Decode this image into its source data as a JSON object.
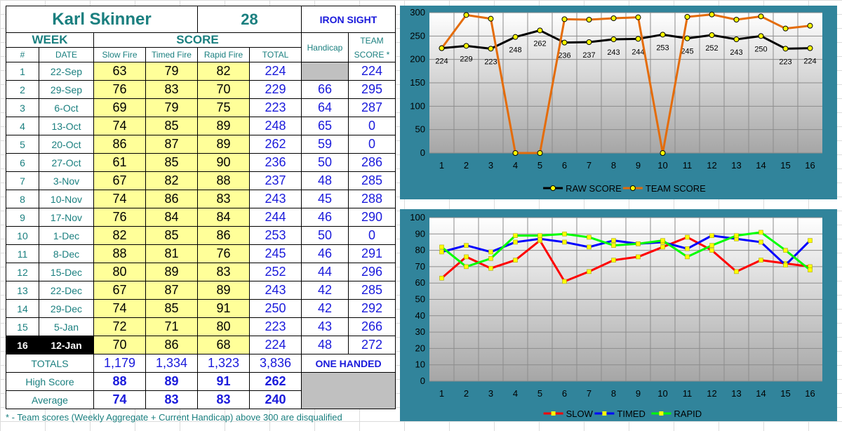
{
  "shooter": {
    "name": "Karl Skinner",
    "number": "28",
    "team": "IRON SIGHT"
  },
  "headers": {
    "week": "WEEK",
    "score": "SCORE",
    "num": "#",
    "date": "DATE",
    "slow": "Slow Fire",
    "timed": "Timed Fire",
    "rapid": "Rapid Fire",
    "total": "TOTAL",
    "handicap": "Handicap",
    "team_score_line1": "TEAM",
    "team_score_line2": "SCORE *"
  },
  "rows": [
    {
      "week": "1",
      "date": "22-Sep",
      "slow": "63",
      "timed": "79",
      "rapid": "82",
      "total": "224",
      "handicap": "",
      "team_score": "224"
    },
    {
      "week": "2",
      "date": "29-Sep",
      "slow": "76",
      "timed": "83",
      "rapid": "70",
      "total": "229",
      "handicap": "66",
      "team_score": "295"
    },
    {
      "week": "3",
      "date": "6-Oct",
      "slow": "69",
      "timed": "79",
      "rapid": "75",
      "total": "223",
      "handicap": "64",
      "team_score": "287"
    },
    {
      "week": "4",
      "date": "13-Oct",
      "slow": "74",
      "timed": "85",
      "rapid": "89",
      "total": "248",
      "handicap": "65",
      "team_score": "0"
    },
    {
      "week": "5",
      "date": "20-Oct",
      "slow": "86",
      "timed": "87",
      "rapid": "89",
      "total": "262",
      "handicap": "59",
      "team_score": "0"
    },
    {
      "week": "6",
      "date": "27-Oct",
      "slow": "61",
      "timed": "85",
      "rapid": "90",
      "total": "236",
      "handicap": "50",
      "team_score": "286"
    },
    {
      "week": "7",
      "date": "3-Nov",
      "slow": "67",
      "timed": "82",
      "rapid": "88",
      "total": "237",
      "handicap": "48",
      "team_score": "285"
    },
    {
      "week": "8",
      "date": "10-Nov",
      "slow": "74",
      "timed": "86",
      "rapid": "83",
      "total": "243",
      "handicap": "45",
      "team_score": "288"
    },
    {
      "week": "9",
      "date": "17-Nov",
      "slow": "76",
      "timed": "84",
      "rapid": "84",
      "total": "244",
      "handicap": "46",
      "team_score": "290"
    },
    {
      "week": "10",
      "date": "1-Dec",
      "slow": "82",
      "timed": "85",
      "rapid": "86",
      "total": "253",
      "handicap": "50",
      "team_score": "0"
    },
    {
      "week": "11",
      "date": "8-Dec",
      "slow": "88",
      "timed": "81",
      "rapid": "76",
      "total": "245",
      "handicap": "46",
      "team_score": "291"
    },
    {
      "week": "12",
      "date": "15-Dec",
      "slow": "80",
      "timed": "89",
      "rapid": "83",
      "total": "252",
      "handicap": "44",
      "team_score": "296"
    },
    {
      "week": "13",
      "date": "22-Dec",
      "slow": "67",
      "timed": "87",
      "rapid": "89",
      "total": "243",
      "handicap": "42",
      "team_score": "285"
    },
    {
      "week": "14",
      "date": "29-Dec",
      "slow": "74",
      "timed": "85",
      "rapid": "91",
      "total": "250",
      "handicap": "42",
      "team_score": "292"
    },
    {
      "week": "15",
      "date": "5-Jan",
      "slow": "72",
      "timed": "71",
      "rapid": "80",
      "total": "223",
      "handicap": "43",
      "team_score": "266"
    },
    {
      "week": "16",
      "date": "12-Jan",
      "slow": "70",
      "timed": "86",
      "rapid": "68",
      "total": "224",
      "handicap": "48",
      "team_score": "272"
    }
  ],
  "summary": {
    "totals": {
      "label": "TOTALS",
      "slow": "1,179",
      "timed": "1,334",
      "rapid": "1,323",
      "total": "3,836"
    },
    "high": {
      "label": "High Score",
      "slow": "88",
      "timed": "89",
      "rapid": "91",
      "total": "262"
    },
    "average": {
      "label": "Average",
      "slow": "74",
      "timed": "83",
      "rapid": "83",
      "total": "240"
    },
    "class_label": "ONE HANDED"
  },
  "footnote": "* - Team scores (Weekly Aggregate + Current Handicap) above 300 are disqualified",
  "colors": {
    "teal": "#1a7f7f",
    "blue": "#1a1adb",
    "yellow_cells": "#ffff99",
    "panel": "#31849b",
    "raw": "#000000",
    "team": "#e46c0a",
    "slow": "#ff0000",
    "timed": "#0000ff",
    "rapid": "#00ff00",
    "marker": "#ffff00"
  },
  "chart_data": [
    {
      "type": "line",
      "x": [
        1,
        2,
        3,
        4,
        5,
        6,
        7,
        8,
        9,
        10,
        11,
        12,
        13,
        14,
        15,
        16
      ],
      "ylim": [
        0,
        300
      ],
      "yticks": [
        0,
        50,
        100,
        150,
        200,
        250,
        300
      ],
      "grid": true,
      "legend_position": "bottom",
      "series": [
        {
          "name": "RAW SCORE",
          "color": "#000000",
          "values": [
            224,
            229,
            223,
            248,
            262,
            236,
            237,
            243,
            244,
            253,
            245,
            252,
            243,
            250,
            223,
            224
          ],
          "labels": [
            "224",
            "229",
            "223",
            "248",
            "262",
            "236",
            "237",
            "243",
            "244",
            "253",
            "245",
            "252",
            "243",
            "250",
            "223",
            "224"
          ]
        },
        {
          "name": "TEAM SCORE",
          "color": "#e46c0a",
          "values": [
            224,
            295,
            287,
            0,
            0,
            286,
            285,
            288,
            290,
            0,
            291,
            296,
            285,
            292,
            266,
            272
          ]
        }
      ]
    },
    {
      "type": "line",
      "x": [
        1,
        2,
        3,
        4,
        5,
        6,
        7,
        8,
        9,
        10,
        11,
        12,
        13,
        14,
        15,
        16
      ],
      "ylim": [
        0,
        100
      ],
      "yticks": [
        0,
        10,
        20,
        30,
        40,
        50,
        60,
        70,
        80,
        90,
        100
      ],
      "grid": true,
      "legend_position": "bottom",
      "series": [
        {
          "name": "SLOW",
          "color": "#ff0000",
          "values": [
            63,
            76,
            69,
            74,
            86,
            61,
            67,
            74,
            76,
            82,
            88,
            80,
            67,
            74,
            72,
            70
          ]
        },
        {
          "name": "TIMED",
          "color": "#0000ff",
          "values": [
            79,
            83,
            79,
            85,
            87,
            85,
            82,
            86,
            84,
            85,
            81,
            89,
            87,
            85,
            71,
            86
          ]
        },
        {
          "name": "RAPID",
          "color": "#00ff00",
          "values": [
            82,
            70,
            75,
            89,
            89,
            90,
            88,
            83,
            84,
            86,
            76,
            83,
            89,
            91,
            80,
            68
          ]
        }
      ]
    }
  ]
}
